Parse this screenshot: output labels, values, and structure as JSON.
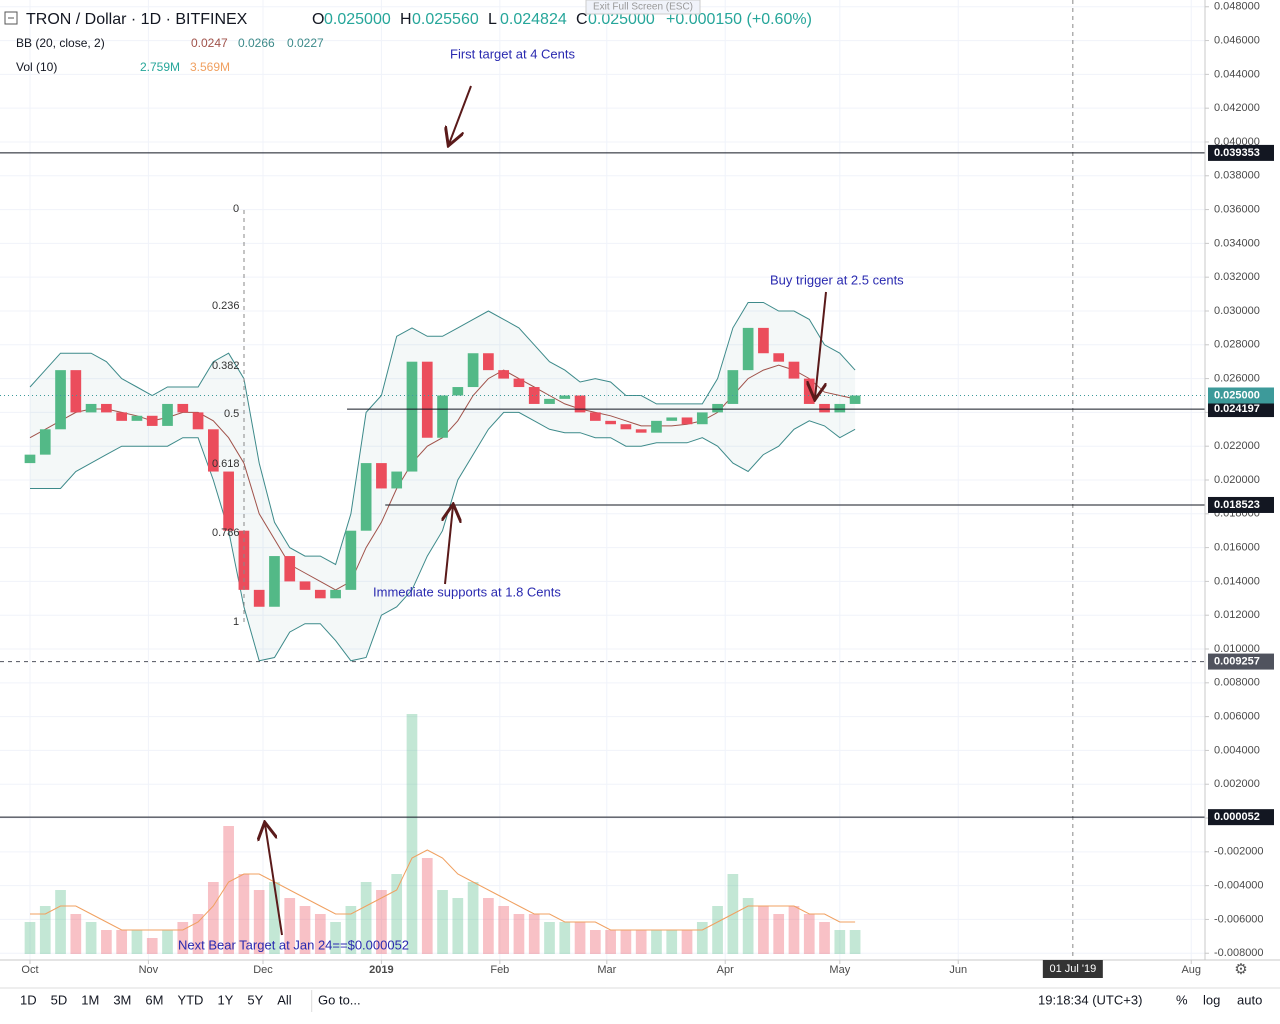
{
  "header": {
    "symbol": "TRON / Dollar · 1D · BITFINEX",
    "ohlc": [
      {
        "label": "O",
        "value": "0.025000"
      },
      {
        "label": "H",
        "value": "0.025560"
      },
      {
        "label": "L",
        "value": "0.024824"
      },
      {
        "label": "C",
        "value": "0.025000"
      }
    ],
    "change": "+0.000150 (+0.60%)",
    "bb": {
      "label": "BB (20, close, 2)",
      "values": [
        "0.0247",
        "0.0266",
        "0.0227"
      ]
    },
    "vol": {
      "label": "Vol (10)",
      "values": [
        "2.759M",
        "3.569M"
      ]
    },
    "exit": "Exit Full Screen (ESC)"
  },
  "chart_data": {
    "type": "candlestick",
    "x": [
      0,
      4,
      8,
      12,
      16,
      20,
      24,
      28,
      32,
      36,
      40,
      44,
      48,
      52,
      56,
      60,
      64,
      68,
      72,
      76,
      80,
      84,
      88,
      92,
      96,
      100,
      104,
      108,
      112,
      116,
      120,
      124,
      128,
      132,
      136,
      140,
      144,
      148,
      152,
      156,
      160,
      164,
      168,
      172,
      176,
      180,
      184,
      188,
      192,
      196,
      200,
      204,
      208,
      212,
      216
    ],
    "open": [
      0.021,
      0.0215,
      0.023,
      0.0265,
      0.024,
      0.0245,
      0.024,
      0.0235,
      0.0238,
      0.0232,
      0.0245,
      0.024,
      0.023,
      0.0205,
      0.017,
      0.0135,
      0.0125,
      0.0155,
      0.014,
      0.0135,
      0.013,
      0.0135,
      0.017,
      0.021,
      0.0195,
      0.0205,
      0.027,
      0.0225,
      0.025,
      0.0255,
      0.0275,
      0.0265,
      0.026,
      0.0255,
      0.0245,
      0.0248,
      0.025,
      0.024,
      0.0235,
      0.0233,
      0.023,
      0.0228,
      0.0235,
      0.0237,
      0.0233,
      0.024,
      0.0245,
      0.0265,
      0.029,
      0.0275,
      0.027,
      0.026,
      0.0245,
      0.024,
      0.0245
    ],
    "close": [
      0.0215,
      0.023,
      0.0265,
      0.024,
      0.0245,
      0.024,
      0.0235,
      0.0238,
      0.0232,
      0.0245,
      0.024,
      0.023,
      0.0205,
      0.017,
      0.0135,
      0.0125,
      0.0155,
      0.014,
      0.0135,
      0.013,
      0.0135,
      0.017,
      0.021,
      0.0195,
      0.0205,
      0.027,
      0.0225,
      0.025,
      0.0255,
      0.0275,
      0.0265,
      0.026,
      0.0255,
      0.0245,
      0.0248,
      0.025,
      0.024,
      0.0235,
      0.0233,
      0.023,
      0.0228,
      0.0235,
      0.0237,
      0.0233,
      0.024,
      0.0245,
      0.0265,
      0.029,
      0.0275,
      0.027,
      0.026,
      0.0245,
      0.024,
      0.0245,
      0.025
    ],
    "bb_upper": [
      0.0255,
      0.0265,
      0.0275,
      0.0275,
      0.0275,
      0.027,
      0.026,
      0.0255,
      0.025,
      0.0255,
      0.0255,
      0.0255,
      0.027,
      0.0275,
      0.026,
      0.021,
      0.0175,
      0.016,
      0.0155,
      0.0155,
      0.015,
      0.018,
      0.024,
      0.025,
      0.0285,
      0.029,
      0.0285,
      0.0285,
      0.029,
      0.0295,
      0.03,
      0.0295,
      0.029,
      0.028,
      0.027,
      0.0265,
      0.0258,
      0.026,
      0.0258,
      0.025,
      0.025,
      0.0245,
      0.0245,
      0.0245,
      0.0245,
      0.026,
      0.029,
      0.0305,
      0.0305,
      0.03,
      0.03,
      0.0295,
      0.028,
      0.0275,
      0.0265
    ],
    "bb_middle": [
      0.0225,
      0.023,
      0.0235,
      0.024,
      0.0242,
      0.0242,
      0.024,
      0.0238,
      0.0235,
      0.0237,
      0.024,
      0.024,
      0.0235,
      0.0225,
      0.021,
      0.018,
      0.0165,
      0.015,
      0.0145,
      0.014,
      0.0135,
      0.014,
      0.016,
      0.0175,
      0.0195,
      0.021,
      0.022,
      0.0225,
      0.0235,
      0.025,
      0.026,
      0.0265,
      0.026,
      0.0255,
      0.025,
      0.0245,
      0.0242,
      0.024,
      0.0238,
      0.0235,
      0.0232,
      0.0232,
      0.0232,
      0.0233,
      0.0235,
      0.024,
      0.025,
      0.026,
      0.0265,
      0.0268,
      0.0265,
      0.026,
      0.0252,
      0.025,
      0.0248
    ],
    "bb_lower": [
      0.0195,
      0.0195,
      0.0195,
      0.0205,
      0.021,
      0.0215,
      0.022,
      0.022,
      0.022,
      0.022,
      0.0225,
      0.0225,
      0.02,
      0.017,
      0.0125,
      0.0093,
      0.0095,
      0.011,
      0.0115,
      0.0115,
      0.0105,
      0.0093,
      0.0095,
      0.012,
      0.0125,
      0.0135,
      0.0155,
      0.017,
      0.02,
      0.0215,
      0.023,
      0.024,
      0.024,
      0.0235,
      0.023,
      0.0228,
      0.0228,
      0.0225,
      0.0225,
      0.022,
      0.022,
      0.0222,
      0.0222,
      0.0222,
      0.0225,
      0.022,
      0.021,
      0.0205,
      0.0215,
      0.022,
      0.023,
      0.0235,
      0.0232,
      0.0225,
      0.023
    ],
    "volume": [
      4,
      6,
      8,
      5,
      4,
      3,
      3,
      3,
      2,
      3,
      4,
      5,
      9,
      16,
      10,
      8,
      9,
      7,
      6,
      5,
      4,
      6,
      9,
      8,
      10,
      30,
      12,
      8,
      7,
      9,
      7,
      6,
      5,
      5,
      4,
      4,
      4,
      3,
      3,
      3,
      3,
      3,
      3,
      3,
      4,
      6,
      10,
      7,
      6,
      5,
      6,
      5,
      4,
      3,
      3
    ],
    "volume_ma": [
      5,
      5,
      6,
      6,
      5,
      4,
      3,
      3,
      3,
      3,
      3,
      4,
      6,
      9,
      10,
      10,
      9,
      8,
      7,
      6,
      5,
      5,
      6,
      7,
      8,
      12,
      13,
      12,
      10,
      9,
      8,
      7,
      6,
      5,
      5,
      4,
      4,
      4,
      3,
      3,
      3,
      3,
      3,
      3,
      3,
      4,
      5,
      6,
      6,
      6,
      6,
      5,
      5,
      4,
      4
    ],
    "volume_ylim": [
      0,
      30
    ],
    "up_color": "#53b987",
    "down_color": "#eb4d5c",
    "band_color": "#3d8a8a",
    "mid_color": "#a0524a",
    "vol_ma_color": "#f0a060",
    "xlim": [
      -7.85,
      307.6
    ],
    "xticks": [
      {
        "value": 0,
        "label": "Oct"
      },
      {
        "value": 31,
        "label": "Nov"
      },
      {
        "value": 61,
        "label": "Dec"
      },
      {
        "value": 92,
        "label": "2019"
      },
      {
        "value": 123,
        "label": "Feb"
      },
      {
        "value": 151,
        "label": "Mar"
      },
      {
        "value": 182,
        "label": "Apr"
      },
      {
        "value": 212,
        "label": "May"
      },
      {
        "value": 243,
        "label": "Jun"
      },
      {
        "value": 273,
        "label": "01 Jul '19"
      },
      {
        "value": 304,
        "label": "Aug"
      }
    ],
    "ylim": [
      -0.0084,
      0.0484
    ],
    "yticks": [
      {
        "value": 0.048,
        "label": "0.048000"
      },
      {
        "value": 0.046,
        "label": "0.046000"
      },
      {
        "value": 0.044,
        "label": "0.044000"
      },
      {
        "value": 0.042,
        "label": "0.042000"
      },
      {
        "value": 0.04,
        "label": "0.040000"
      },
      {
        "value": 0.038,
        "label": "0.038000"
      },
      {
        "value": 0.036,
        "label": "0.036000"
      },
      {
        "value": 0.034,
        "label": "0.034000"
      },
      {
        "value": 0.032,
        "label": "0.032000"
      },
      {
        "value": 0.03,
        "label": "0.030000"
      },
      {
        "value": 0.028,
        "label": "0.028000"
      },
      {
        "value": 0.026,
        "label": "0.026000"
      },
      {
        "value": 0.024,
        "label": "0.024000"
      },
      {
        "value": 0.022,
        "label": "0.022000"
      },
      {
        "value": 0.02,
        "label": "0.020000"
      },
      {
        "value": 0.018,
        "label": "0.018000"
      },
      {
        "value": 0.016,
        "label": "0.016000"
      },
      {
        "value": 0.014,
        "label": "0.014000"
      },
      {
        "value": 0.012,
        "label": "0.012000"
      },
      {
        "value": 0.01,
        "label": "0.010000"
      },
      {
        "value": 0.008,
        "label": "0.008000"
      },
      {
        "value": 0.006,
        "label": "0.006000"
      },
      {
        "value": 0.004,
        "label": "0.004000"
      },
      {
        "value": 0.002,
        "label": "0.002000"
      },
      {
        "value": 0,
        "label": "0.000000"
      },
      {
        "value": -0.002,
        "label": "-0.002000"
      },
      {
        "value": -0.004,
        "label": "-0.004000"
      },
      {
        "value": -0.006,
        "label": "-0.006000"
      },
      {
        "value": -0.008,
        "label": "-0.008000"
      }
    ],
    "grid": true,
    "levels": [
      {
        "value": 0.039353,
        "label": "0.039353",
        "color": "#131722",
        "from": -7.85
      },
      {
        "value": 0.024197,
        "label": "0.024197",
        "color": "#131722",
        "from": 83
      },
      {
        "value": 0.018523,
        "label": "0.018523",
        "color": "#131722",
        "from": 93
      },
      {
        "value": 5.2e-05,
        "label": "0.000052",
        "color": "#131722",
        "from": -7.85
      },
      {
        "value": 0.025,
        "label": "0.025000",
        "color": "#3d9a9a",
        "from": -7.85,
        "style": "dotted"
      },
      {
        "value": 0.009257,
        "label": "0.009257",
        "color": "#50535e",
        "from": -7.85,
        "style": "dashed"
      }
    ],
    "marker_x": 273,
    "annotations": [
      "First target at 4 Cents",
      "Buy trigger at 2.5 cents",
      "Immediate supports at 1.8 Cents",
      "Next Bear Target at Jan 24==$0.000052"
    ],
    "fib_labels": [
      "0",
      "0.236",
      "0.382",
      "0.5",
      "0.618",
      "0.786",
      "1"
    ]
  },
  "toolbar": {
    "ranges": [
      "1D",
      "5D",
      "1M",
      "3M",
      "6M",
      "YTD",
      "1Y",
      "5Y",
      "All"
    ],
    "goto": "Go to...",
    "clock": "19:18:34 (UTC+3)",
    "options": [
      "%",
      "log",
      "auto"
    ]
  }
}
